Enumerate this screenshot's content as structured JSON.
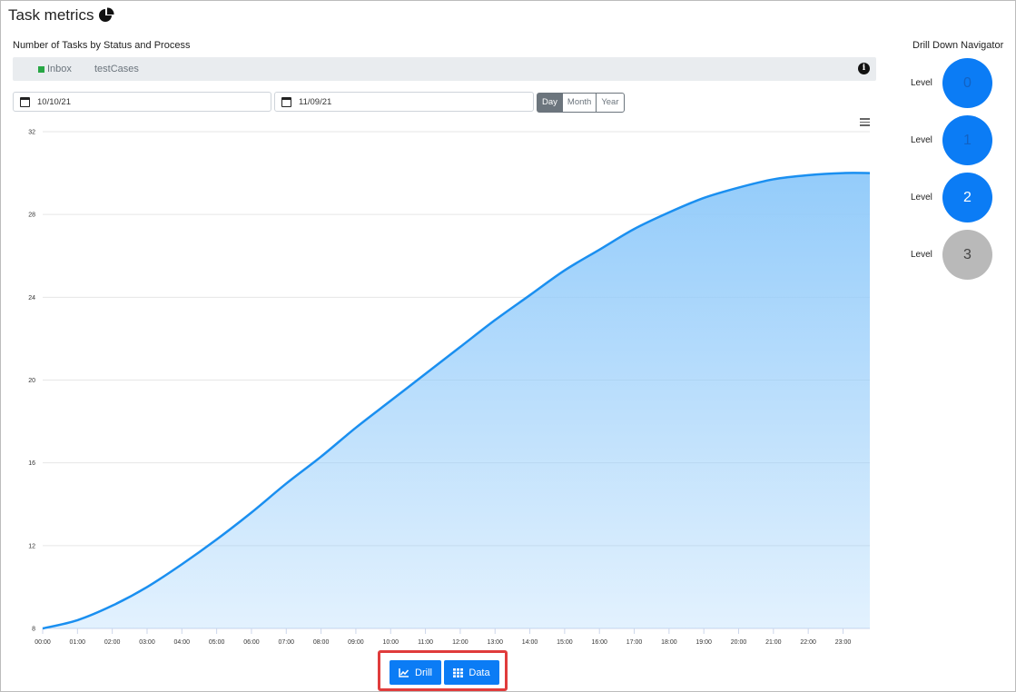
{
  "page": {
    "title": "Task metrics",
    "subtitle": "Number of Tasks by Status and Process"
  },
  "legend": {
    "items": [
      {
        "label": "Inbox",
        "color": "#28a745",
        "marker": "square"
      },
      {
        "label": "testCases"
      }
    ],
    "info_icon": "info-circle-icon"
  },
  "filters": {
    "start_date": "10/10/21",
    "end_date": "11/09/21",
    "periods": [
      "Day",
      "Month",
      "Year"
    ],
    "active_period": "Day"
  },
  "chart_data": {
    "type": "area",
    "x": [
      "00:00",
      "01:00",
      "02:00",
      "03:00",
      "04:00",
      "05:00",
      "06:00",
      "07:00",
      "08:00",
      "09:00",
      "10:00",
      "11:00",
      "12:00",
      "13:00",
      "14:00",
      "15:00",
      "16:00",
      "17:00",
      "18:00",
      "19:00",
      "20:00",
      "21:00",
      "22:00",
      "23:00"
    ],
    "series": [
      {
        "values": [
          8.0,
          8.4,
          9.1,
          10.0,
          11.1,
          12.3,
          13.6,
          15.0,
          16.3,
          17.7,
          19.0,
          20.3,
          21.6,
          22.9,
          24.1,
          25.3,
          26.3,
          27.3,
          28.1,
          28.8,
          29.3,
          29.7,
          29.9,
          30.0
        ]
      }
    ],
    "y_ticks": [
      8,
      12,
      16,
      20,
      24,
      28,
      32
    ],
    "ylim": [
      8,
      32
    ],
    "grid": true,
    "line_color": "#1a8ff0",
    "fill_color": "#8ec9fa"
  },
  "actions": {
    "drill_label": "Drill",
    "data_label": "Data",
    "button_color": "#0b7cf5"
  },
  "navigator": {
    "title": "Drill Down Navigator",
    "levels": [
      {
        "label": "Level",
        "value": "0",
        "state": "active",
        "color": "#0b7cf5"
      },
      {
        "label": "Level",
        "value": "1",
        "state": "active",
        "color": "#0b7cf5"
      },
      {
        "label": "Level",
        "value": "2",
        "state": "current",
        "color": "#0b7cf5"
      },
      {
        "label": "Level",
        "value": "3",
        "state": "disabled",
        "color": "#b9b9b9"
      }
    ]
  }
}
